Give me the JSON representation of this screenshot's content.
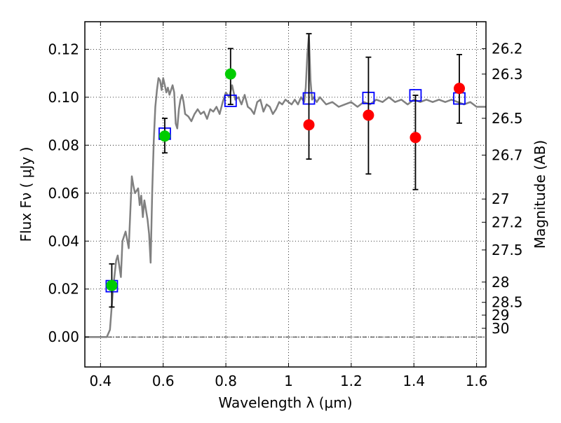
{
  "chart_data": {
    "type": "scatter",
    "xlabel": "Wavelength  λ (μm)",
    "ylabel": "Flux  Fν  ( μJy )",
    "ylabel_right": "Magnitude (AB)",
    "xlim": [
      0.35,
      1.63
    ],
    "ylim": [
      -0.0125,
      0.1315
    ],
    "grid": true,
    "x_ticks": [
      0.4,
      0.6,
      0.8,
      1.0,
      1.2,
      1.4,
      1.6
    ],
    "x_tick_labels": [
      "0.4",
      "0.6",
      "0.8",
      "1",
      "1.2",
      "1.4",
      "1.6"
    ],
    "y_ticks": [
      0.0,
      0.02,
      0.04,
      0.06,
      0.08,
      0.1,
      0.12
    ],
    "y_tick_labels": [
      "0.00",
      "0.02",
      "0.04",
      "0.06",
      "0.08",
      "0.10",
      "0.12"
    ],
    "mag_ticks": [
      26.2,
      26.3,
      26.5,
      26.7,
      27,
      27.2,
      27.5,
      28,
      28.5,
      29,
      30
    ],
    "mag_tick_labels": [
      "26.2",
      "26.3",
      "26.5",
      "26.7",
      "27",
      "27.2",
      "27.5",
      "28",
      "28.5",
      "29",
      "30"
    ],
    "series": [
      {
        "kind": "line",
        "color": "#808080",
        "x": [
          0.35,
          0.4,
          0.42,
          0.43,
          0.44,
          0.45,
          0.455,
          0.465,
          0.47,
          0.48,
          0.49,
          0.5,
          0.505,
          0.51,
          0.52,
          0.525,
          0.53,
          0.535,
          0.54,
          0.55,
          0.555,
          0.56,
          0.565,
          0.57,
          0.575,
          0.58,
          0.585,
          0.59,
          0.595,
          0.6,
          0.605,
          0.61,
          0.615,
          0.62,
          0.625,
          0.63,
          0.635,
          0.64,
          0.645,
          0.65,
          0.655,
          0.66,
          0.665,
          0.67,
          0.68,
          0.69,
          0.7,
          0.71,
          0.72,
          0.73,
          0.74,
          0.75,
          0.76,
          0.77,
          0.78,
          0.79,
          0.8,
          0.81,
          0.82,
          0.83,
          0.84,
          0.85,
          0.86,
          0.87,
          0.88,
          0.89,
          0.9,
          0.91,
          0.92,
          0.93,
          0.94,
          0.95,
          0.96,
          0.97,
          0.98,
          0.99,
          1.0,
          1.01,
          1.02,
          1.03,
          1.04,
          1.05,
          1.055,
          1.06,
          1.065,
          1.07,
          1.075,
          1.08,
          1.09,
          1.1,
          1.12,
          1.14,
          1.16,
          1.18,
          1.2,
          1.22,
          1.24,
          1.26,
          1.28,
          1.3,
          1.32,
          1.34,
          1.36,
          1.38,
          1.4,
          1.42,
          1.44,
          1.46,
          1.48,
          1.5,
          1.52,
          1.54,
          1.56,
          1.58,
          1.6,
          1.63
        ],
        "y": [
          0.0,
          0.0,
          0.0,
          0.003,
          0.02,
          0.032,
          0.034,
          0.025,
          0.04,
          0.044,
          0.037,
          0.067,
          0.063,
          0.06,
          0.062,
          0.055,
          0.059,
          0.05,
          0.057,
          0.049,
          0.043,
          0.031,
          0.061,
          0.082,
          0.096,
          0.103,
          0.108,
          0.107,
          0.103,
          0.108,
          0.105,
          0.102,
          0.104,
          0.101,
          0.103,
          0.105,
          0.102,
          0.089,
          0.087,
          0.095,
          0.099,
          0.101,
          0.098,
          0.093,
          0.092,
          0.09,
          0.093,
          0.095,
          0.093,
          0.094,
          0.091,
          0.095,
          0.094,
          0.096,
          0.093,
          0.098,
          0.102,
          0.1,
          0.105,
          0.099,
          0.1,
          0.097,
          0.101,
          0.096,
          0.095,
          0.093,
          0.098,
          0.099,
          0.094,
          0.097,
          0.096,
          0.093,
          0.095,
          0.098,
          0.097,
          0.099,
          0.098,
          0.097,
          0.099,
          0.097,
          0.1,
          0.098,
          0.104,
          0.118,
          0.126,
          0.107,
          0.099,
          0.1,
          0.098,
          0.1,
          0.097,
          0.098,
          0.096,
          0.097,
          0.098,
          0.096,
          0.098,
          0.097,
          0.099,
          0.098,
          0.1,
          0.098,
          0.099,
          0.097,
          0.099,
          0.098,
          0.099,
          0.098,
          0.099,
          0.098,
          0.099,
          0.098,
          0.097,
          0.098,
          0.096,
          0.096
        ]
      },
      {
        "kind": "square-marker",
        "color": "#0000ff",
        "x": [
          0.436,
          0.605,
          0.815,
          1.065,
          1.255,
          1.405,
          1.545
        ],
        "y": [
          0.0212,
          0.0848,
          0.0985,
          0.0995,
          0.0997,
          0.1008,
          0.0995
        ]
      },
      {
        "kind": "errorbar",
        "color": "#000000",
        "x": [
          0.436,
          0.605,
          0.815,
          1.065,
          1.255,
          1.405,
          1.545
        ],
        "y_low": [
          0.0125,
          0.0768,
          0.097,
          0.0742,
          0.068,
          0.0615,
          0.0892
        ],
        "y_high": [
          0.0305,
          0.0912,
          0.1203,
          0.1265,
          0.1167,
          0.1008,
          0.1178
        ]
      },
      {
        "kind": "circle-marker",
        "color": "#00cc00",
        "x": [
          0.436,
          0.605,
          0.815
        ],
        "y": [
          0.0215,
          0.0838,
          0.1097
        ]
      },
      {
        "kind": "circle-marker",
        "color": "#ff0000",
        "x": [
          1.065,
          1.255,
          1.405,
          1.545
        ],
        "y": [
          0.0885,
          0.0925,
          0.0832,
          0.1037
        ]
      }
    ]
  }
}
